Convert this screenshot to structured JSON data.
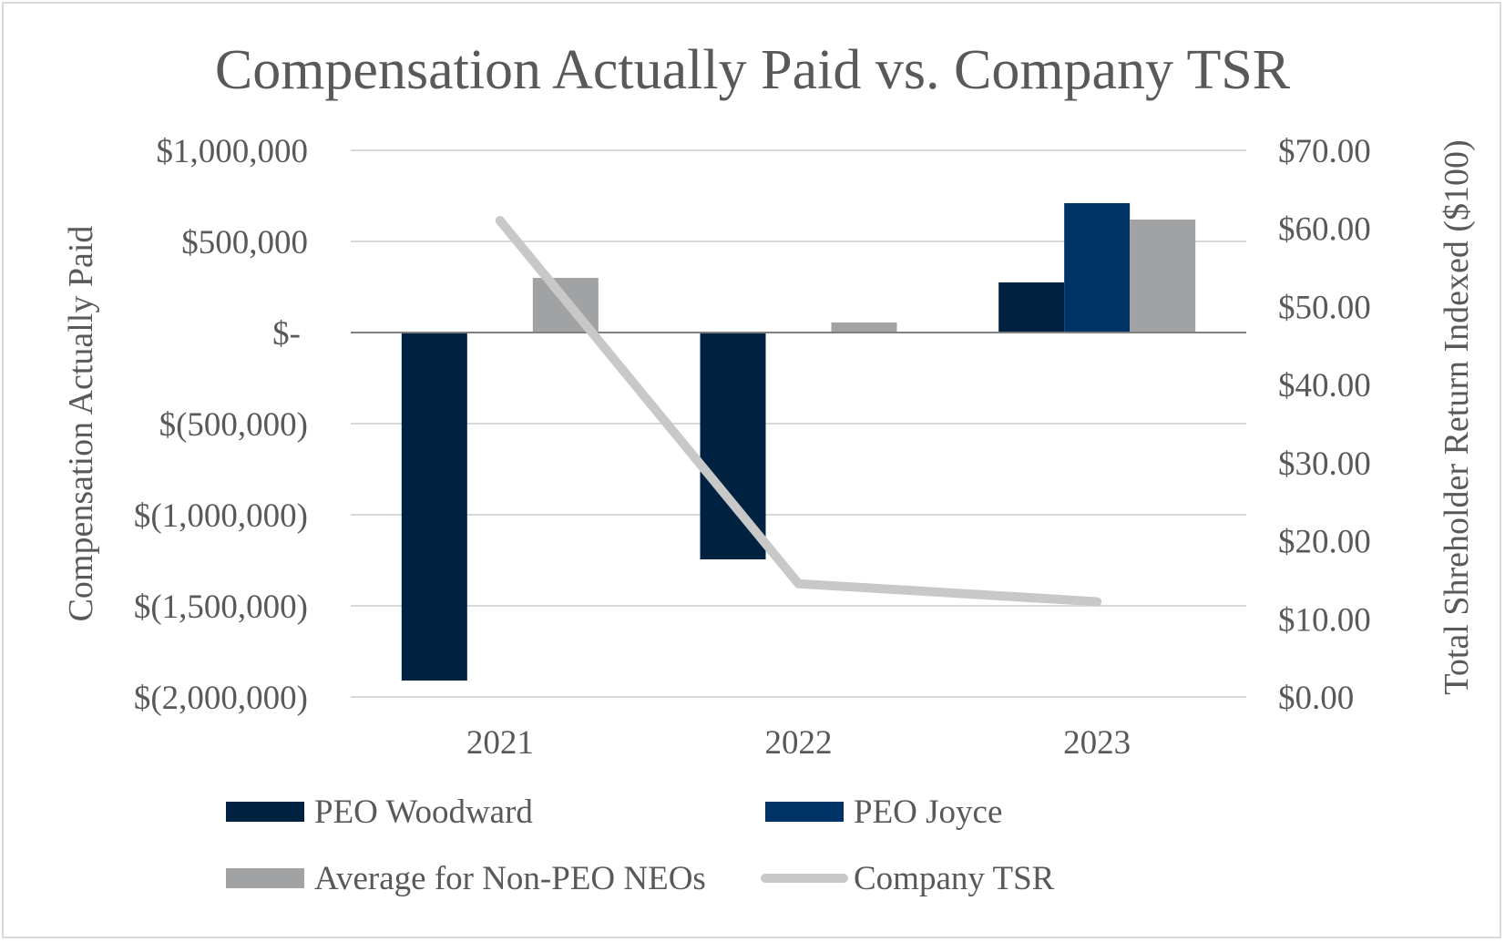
{
  "chart_data": {
    "type": "bar",
    "title": "Compensation Actually Paid vs. Company TSR",
    "categories": [
      "2021",
      "2022",
      "2023"
    ],
    "y_left": {
      "label": "Compensation Actually Paid",
      "range": [
        -2000000,
        1000000
      ],
      "ticks": [
        1000000,
        500000,
        0,
        -500000,
        -1000000,
        -1500000,
        -2000000
      ],
      "tick_labels": [
        "$1,000,000",
        "$500,000",
        "$-",
        "$(500,000)",
        "$(1,000,000)",
        "$(1,500,000)",
        "$(2,000,000)"
      ]
    },
    "y_right": {
      "label": "Total Shreholder Return Indexed ($100)",
      "range": [
        0,
        70
      ],
      "ticks": [
        70,
        60,
        50,
        40,
        30,
        20,
        10,
        0
      ],
      "tick_labels": [
        "$70.00",
        "$60.00",
        "$50.00",
        "$40.00",
        "$30.00",
        "$20.00",
        "$10.00",
        "$0.00"
      ]
    },
    "series": [
      {
        "name": "PEO Woodward",
        "type": "bar",
        "axis": "left",
        "color": "#002240",
        "values": [
          -1910000,
          -1245000,
          275000
        ]
      },
      {
        "name": "PEO Joyce",
        "type": "bar",
        "axis": "left",
        "color": "#003366",
        "values": [
          null,
          null,
          710000
        ]
      },
      {
        "name": "Average for Non-PEO NEOs",
        "type": "bar",
        "axis": "left",
        "color": "#a0a2a3",
        "values": [
          300000,
          55000,
          620000
        ]
      },
      {
        "name": "Company TSR",
        "type": "line",
        "axis": "right",
        "color": "#c8c8c8",
        "values": [
          61.0,
          14.5,
          12.2
        ]
      }
    ],
    "grid": true,
    "legend_position": "bottom"
  }
}
